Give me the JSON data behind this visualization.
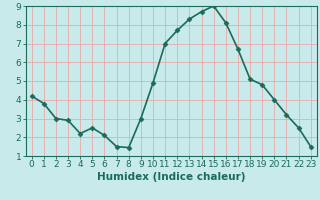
{
  "x": [
    0,
    1,
    2,
    3,
    4,
    5,
    6,
    7,
    8,
    9,
    10,
    11,
    12,
    13,
    14,
    15,
    16,
    17,
    18,
    19,
    20,
    21,
    22,
    23
  ],
  "y": [
    4.2,
    3.8,
    3.0,
    2.9,
    2.2,
    2.5,
    2.1,
    1.5,
    1.45,
    3.0,
    4.9,
    7.0,
    7.7,
    8.3,
    8.7,
    9.0,
    8.1,
    6.7,
    5.1,
    4.8,
    4.0,
    3.2,
    2.5,
    1.5
  ],
  "line_color": "#1a6b5a",
  "marker": "D",
  "marker_size": 2.5,
  "bg_color": "#c8eaea",
  "plot_bg_color": "#c8eaea",
  "grid_color": "#e8aaaa",
  "xlabel": "Humidex (Indice chaleur)",
  "xlim": [
    -0.5,
    23.5
  ],
  "ylim": [
    1,
    9
  ],
  "yticks": [
    1,
    2,
    3,
    4,
    5,
    6,
    7,
    8,
    9
  ],
  "xticks": [
    0,
    1,
    2,
    3,
    4,
    5,
    6,
    7,
    8,
    9,
    10,
    11,
    12,
    13,
    14,
    15,
    16,
    17,
    18,
    19,
    20,
    21,
    22,
    23
  ],
  "xlabel_fontsize": 7.5,
  "tick_fontsize": 6.5,
  "linewidth": 1.2,
  "axis_color": "#1a6b5a",
  "spine_color": "#1a6b5a"
}
